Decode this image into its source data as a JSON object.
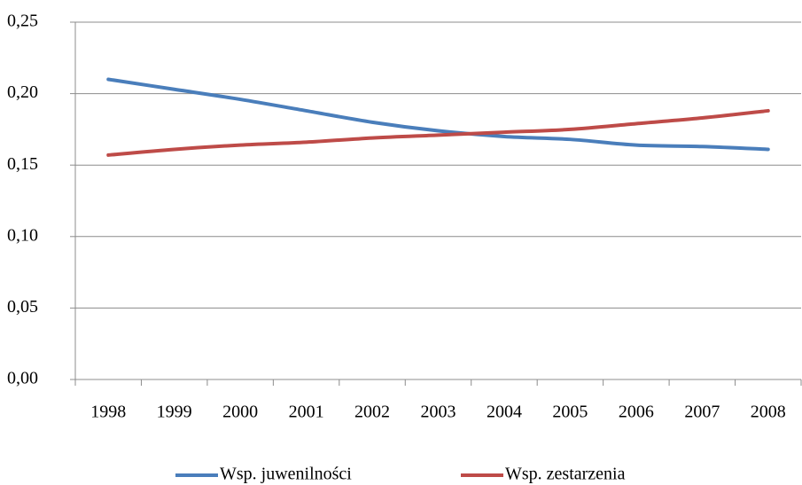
{
  "chart_data": {
    "type": "line",
    "categories": [
      "1998",
      "1999",
      "2000",
      "2001",
      "2002",
      "2003",
      "2004",
      "2005",
      "2006",
      "2007",
      "2008"
    ],
    "series": [
      {
        "name": "Wsp. juwenilności",
        "color": "#4a7ebb",
        "values": [
          0.21,
          0.203,
          0.196,
          0.188,
          0.18,
          0.174,
          0.17,
          0.168,
          0.164,
          0.163,
          0.161
        ]
      },
      {
        "name": "Wsp. zestarzenia",
        "color": "#be4b48",
        "values": [
          0.157,
          0.161,
          0.164,
          0.166,
          0.169,
          0.171,
          0.173,
          0.175,
          0.179,
          0.183,
          0.188
        ]
      }
    ],
    "ylim": [
      0,
      0.25
    ],
    "yticks": [
      {
        "value": 0,
        "label": "0,00"
      },
      {
        "value": 0.05,
        "label": "0,05"
      },
      {
        "value": 0.1,
        "label": "0,10"
      },
      {
        "value": 0.15,
        "label": "0,15"
      },
      {
        "value": 0.2,
        "label": "0,20"
      },
      {
        "value": 0.25,
        "label": "0,25"
      }
    ],
    "grid": true,
    "legend": "bottom"
  }
}
